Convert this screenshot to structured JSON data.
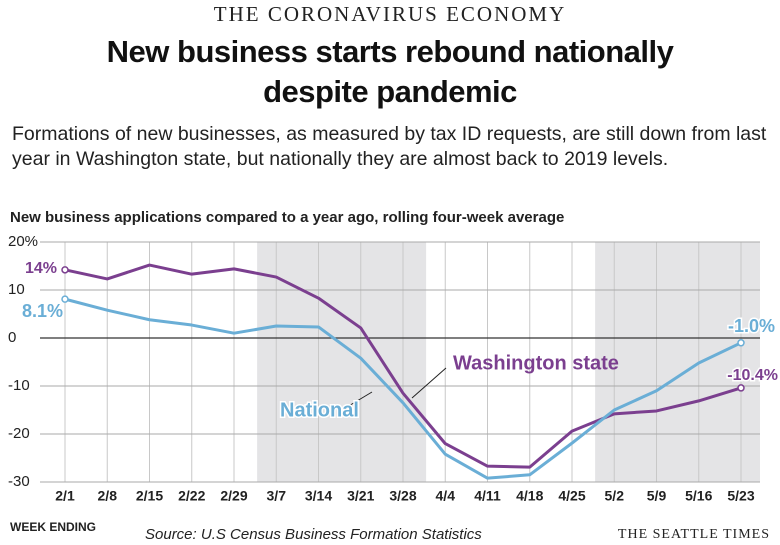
{
  "kicker": "THE CORONAVIRUS ECONOMY",
  "subtitle": "Formations of new businesses, as measured by tax ID requests, are still down from last year in Washington state, but nationally they are almost back to 2019 levels.",
  "footer": {
    "x_label": "WEEK ENDING",
    "source": "Source: U.S Census Business Formation Statistics",
    "credit": "THE SEATTLE TIMES"
  },
  "chart_data": {
    "type": "line",
    "title": "New business starts rebound nationally despite pandemic",
    "chart_title": "New business applications compared to a year ago, rolling four-week average",
    "categories": [
      "2/1",
      "2/8",
      "2/15",
      "2/22",
      "2/29",
      "3/7",
      "3/14",
      "3/21",
      "3/28",
      "4/4",
      "4/11",
      "4/18",
      "4/25",
      "5/2",
      "5/9",
      "5/16",
      "5/23"
    ],
    "series": [
      {
        "name": "Washington state",
        "color": "#7b3f8f",
        "values": [
          14.2,
          12.3,
          15.2,
          13.3,
          14.4,
          12.7,
          8.3,
          2.1,
          -11.5,
          -22,
          -26.7,
          -26.9,
          -19.4,
          -15.8,
          -15.2,
          -13.1,
          -10.4
        ],
        "value_labels": [
          "14%",
          null,
          null,
          null,
          null,
          null,
          null,
          null,
          null,
          null,
          null,
          null,
          null,
          null,
          null,
          null,
          "-10.4%"
        ]
      },
      {
        "name": "National",
        "color": "#6aaed6",
        "values": [
          8.1,
          5.8,
          3.8,
          2.7,
          1.0,
          2.5,
          2.3,
          -4.2,
          -13.5,
          -24.2,
          -29.2,
          -28.5,
          -21.9,
          -15,
          -11,
          -5.2,
          -1.0
        ],
        "value_labels": [
          "8.1%",
          null,
          null,
          null,
          null,
          null,
          null,
          null,
          null,
          null,
          null,
          null,
          null,
          null,
          null,
          null,
          "-1.0%"
        ]
      }
    ],
    "ylim": [
      -30,
      20
    ],
    "yticks": [
      -30,
      -20,
      -10,
      0,
      10,
      {
        "value": 20,
        "label": "20%"
      }
    ],
    "grid": true
  }
}
